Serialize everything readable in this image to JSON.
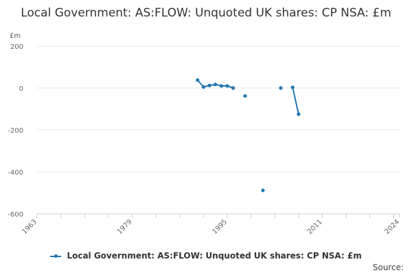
{
  "title": "Local Government: AS:FLOW: Unquoted UK shares: CP NSA: £m",
  "y_unit": "£m",
  "legend_label": "Local Government: AS:FLOW: Unquoted UK shares: CP NSA: £m",
  "source_label": "Source:",
  "colors": {
    "series": "#1f77b4",
    "grid": "#e3e3e3",
    "axis": "#cccccc",
    "tick_text": "#666666"
  },
  "chart_data": {
    "type": "line",
    "title": "Local Government: AS:FLOW: Unquoted UK shares: CP NSA: £m",
    "ylabel": "£m",
    "xlim": [
      1963,
      2024
    ],
    "ylim": [
      -600,
      200
    ],
    "x_ticks": [
      1963,
      1979,
      1995,
      2011,
      2024
    ],
    "y_ticks": [
      200,
      0,
      -200,
      -400,
      -600
    ],
    "grid": true,
    "legend_position": "bottom",
    "series": [
      {
        "name": "Local Government: AS:FLOW: Unquoted UK shares: CP NSA: £m",
        "segments": [
          {
            "x": [
              1990,
              1991,
              1992,
              1993,
              1994,
              1995,
              1996
            ],
            "y": [
              38,
              5,
              12,
              17,
              10,
              10,
              0
            ]
          },
          {
            "x": [
              1998
            ],
            "y": [
              -38
            ]
          },
          {
            "x": [
              2001
            ],
            "y": [
              -488
            ]
          },
          {
            "x": [
              2004
            ],
            "y": [
              0
            ]
          },
          {
            "x": [
              2006,
              2007
            ],
            "y": [
              3,
              -125
            ]
          }
        ]
      }
    ]
  }
}
